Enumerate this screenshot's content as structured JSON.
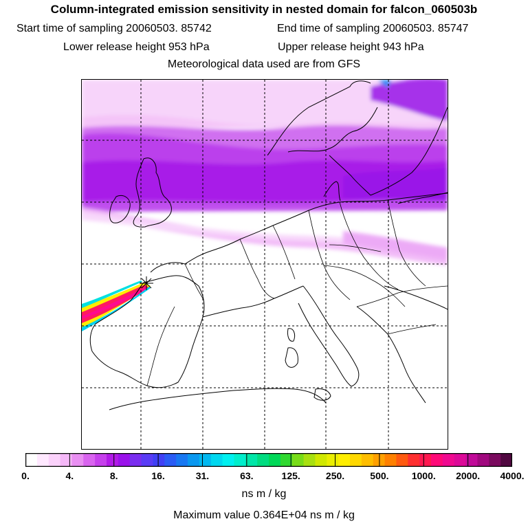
{
  "header": {
    "title": "Column-integrated emission sensitivity in nested domain for falcon_060503b",
    "start_label": "Start time of sampling 20060503. 85742",
    "end_label": "End time of sampling 20060503. 85747",
    "lower_label": "Lower release height  953 hPa",
    "upper_label": "Upper release height  943 hPa",
    "met_label": "Meteorological data used are from GFS"
  },
  "legend": {
    "ticks": [
      "0.",
      "4.",
      "8.",
      "16.",
      "31.",
      "63.",
      "125.",
      "250.",
      "500.",
      "1000.",
      "2000.",
      "4000."
    ],
    "colors": [
      "#ffffff",
      "#ffe8ff",
      "#fbd2fb",
      "#f5b8f8",
      "#e98ff2",
      "#d964ef",
      "#c640ec",
      "#b21ae8",
      "#9a12ea",
      "#7a2ef0",
      "#5a3cf6",
      "#4040f5",
      "#2a5cf5",
      "#1878f2",
      "#0a98f0",
      "#00b8f0",
      "#00d8f0",
      "#00f0f0",
      "#00eecc",
      "#00e6a8",
      "#00dc80",
      "#00d858",
      "#30d830",
      "#78dc18",
      "#a8e010",
      "#d0e800",
      "#eaee00",
      "#ffee00",
      "#ffd800",
      "#ffbe00",
      "#ffa000",
      "#ff8000",
      "#ff5a10",
      "#ff3030",
      "#ff1850",
      "#ff0a78",
      "#f00a90",
      "#dc0a98",
      "#c00a98",
      "#a0087e",
      "#7a0a5e",
      "#500840"
    ],
    "unit": "ns m / kg",
    "max_value_label": "Maximum value  0.364E+04 ns m / kg"
  },
  "map": {
    "release_marker": "release-site-star-icon"
  }
}
